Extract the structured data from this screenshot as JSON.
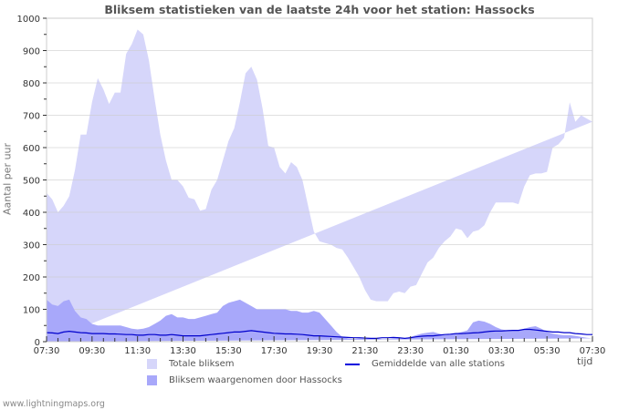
{
  "chart_data": {
    "type": "area",
    "title": "Bliksem statistieken van de laatste 24h voor het station: Hassocks",
    "xlabel": "tijd",
    "ylabel": "Aantal per uur",
    "ylim": [
      0,
      1000
    ],
    "yticks": [
      0,
      100,
      200,
      300,
      400,
      500,
      600,
      700,
      800,
      900,
      1000
    ],
    "xticks": [
      "07:30",
      "09:30",
      "11:30",
      "13:30",
      "15:30",
      "17:30",
      "19:30",
      "21:30",
      "23:30",
      "01:30",
      "03:30",
      "05:30",
      "07:30"
    ],
    "grid": true,
    "legend_position": "bottom",
    "legend": [
      "Totale bliksem",
      "Bliksem waargenomen door Hassocks",
      "Gemiddelde van alle stations"
    ],
    "x_hours": [
      0,
      0.25,
      0.5,
      0.75,
      1,
      1.25,
      1.5,
      1.75,
      2,
      2.25,
      2.5,
      2.75,
      3,
      3.25,
      3.5,
      3.75,
      4,
      4.25,
      4.5,
      4.75,
      5,
      5.25,
      5.5,
      5.75,
      6,
      6.25,
      6.5,
      6.75,
      7,
      7.25,
      7.5,
      7.75,
      8,
      8.25,
      8.5,
      8.75,
      9,
      9.25,
      9.5,
      9.75,
      10,
      10.25,
      10.5,
      10.75,
      11,
      11.25,
      11.5,
      11.75,
      12,
      12.25,
      12.5,
      12.75,
      13,
      13.25,
      13.5,
      13.75,
      14,
      14.25,
      14.5,
      14.75,
      15,
      15.25,
      15.5,
      15.75,
      16,
      16.25,
      16.5,
      16.75,
      17,
      17.25,
      17.5,
      17.75,
      18,
      18.25,
      18.5,
      18.75,
      19,
      19.25,
      19.5,
      19.75,
      20,
      20.25,
      20.5,
      20.75,
      21,
      21.25,
      21.5,
      21.75,
      22,
      22.25,
      22.5,
      22.75,
      23,
      23.25,
      23.5,
      23.75,
      24
    ],
    "series": [
      {
        "name": "Totale bliksem",
        "color": "#d6d6fa",
        "values": [
          460,
          440,
          400,
          420,
          450,
          530,
          640,
          640,
          740,
          815,
          780,
          735,
          770,
          770,
          890,
          920,
          965,
          950,
          870,
          750,
          640,
          560,
          500,
          500,
          480,
          445,
          440,
          405,
          410,
          470,
          500,
          560,
          620,
          660,
          740,
          830,
          850,
          810,
          720,
          605,
          600,
          540,
          520,
          555,
          540,
          500,
          420,
          340,
          310,
          305,
          300,
          290,
          285,
          260,
          230,
          200,
          160,
          130,
          125,
          125,
          125,
          150,
          155,
          150,
          170,
          175,
          210,
          245,
          260,
          290,
          310,
          325,
          350,
          345,
          320,
          340,
          345,
          360,
          400,
          430,
          430,
          430,
          430,
          425,
          480,
          515,
          520,
          520,
          525,
          600,
          610,
          630,
          740,
          680,
          700,
          690,
          680,
          675,
          700
        ]
      },
      {
        "name": "Bliksem waargenomen door Hassocks",
        "color": "#a8a8fa",
        "values": [
          130,
          115,
          110,
          125,
          130,
          95,
          75,
          70,
          55,
          50,
          50,
          50,
          50,
          50,
          45,
          40,
          38,
          40,
          45,
          55,
          65,
          80,
          85,
          75,
          75,
          70,
          70,
          75,
          80,
          85,
          90,
          110,
          120,
          125,
          130,
          120,
          110,
          100,
          100,
          100,
          100,
          100,
          100,
          95,
          95,
          90,
          90,
          95,
          90,
          70,
          50,
          30,
          15,
          10,
          8,
          10,
          8,
          10,
          10,
          8,
          8,
          10,
          12,
          10,
          15,
          20,
          25,
          28,
          30,
          25,
          20,
          22,
          25,
          30,
          35,
          60,
          65,
          62,
          55,
          45,
          38,
          35,
          35,
          35,
          40,
          45,
          48,
          40,
          30,
          25,
          22,
          20,
          20,
          18,
          15,
          12,
          10,
          8,
          10
        ]
      },
      {
        "name": "Gemiddelde van alle stations",
        "color": "#0000cc",
        "values": [
          28,
          27,
          25,
          30,
          32,
          30,
          28,
          27,
          25,
          25,
          25,
          24,
          24,
          23,
          22,
          22,
          20,
          20,
          22,
          22,
          20,
          20,
          22,
          20,
          18,
          18,
          18,
          18,
          20,
          22,
          24,
          26,
          28,
          30,
          30,
          32,
          34,
          32,
          30,
          28,
          26,
          25,
          24,
          24,
          23,
          22,
          20,
          18,
          18,
          17,
          16,
          15,
          14,
          13,
          12,
          12,
          11,
          10,
          10,
          12,
          12,
          13,
          12,
          10,
          12,
          15,
          17,
          18,
          18,
          20,
          22,
          23,
          25,
          25,
          26,
          27,
          28,
          30,
          32,
          33,
          33,
          34,
          35,
          35,
          38,
          38,
          36,
          34,
          32,
          30,
          30,
          28,
          28,
          25,
          24,
          22,
          22,
          20,
          20
        ]
      }
    ]
  },
  "page": {
    "title": "Bliksem statistieken van de laatste 24h voor het station: Hassocks",
    "ylabel": "Aantal per uur",
    "xlabel": "tijd",
    "legend": {
      "total": "Totale bliksem",
      "station": "Bliksem waargenomen door Hassocks",
      "average": "Gemiddelde van alle stations"
    },
    "footer": "www.lightningmaps.org"
  }
}
